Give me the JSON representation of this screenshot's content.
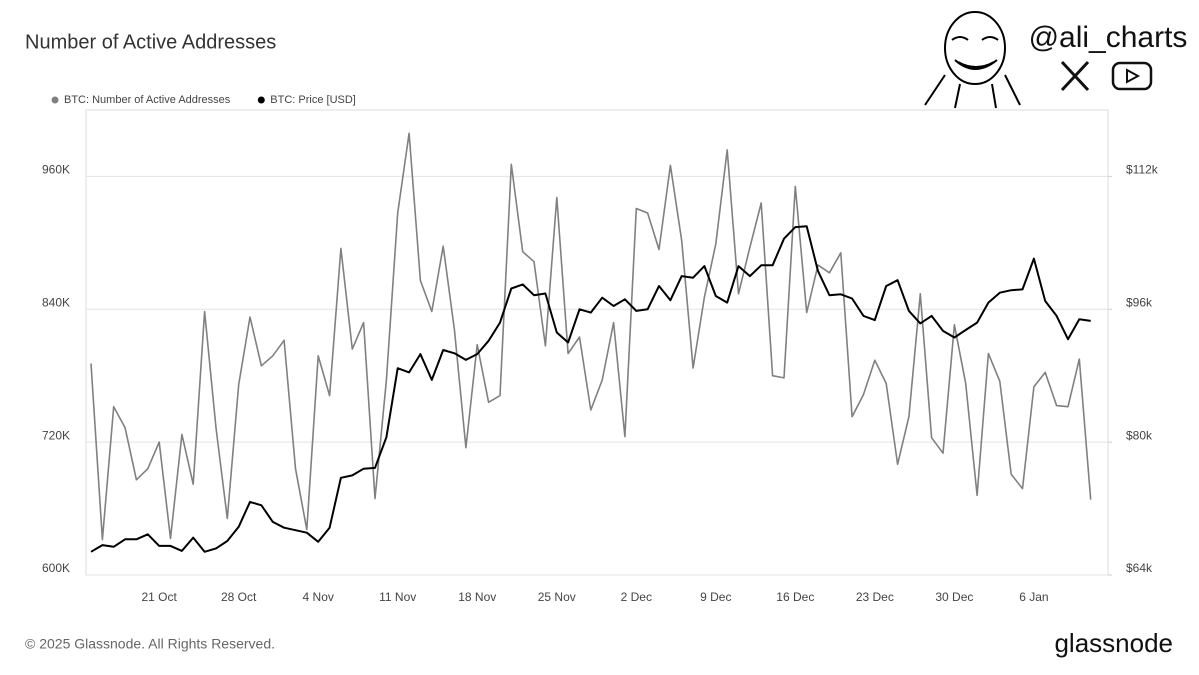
{
  "chart_data": {
    "type": "line",
    "title": "Number of Active Addresses",
    "categories": [
      null,
      null,
      null,
      null,
      null,
      null,
      "21 Oct",
      null,
      null,
      null,
      null,
      null,
      null,
      "28 Oct",
      null,
      null,
      null,
      null,
      null,
      null,
      "4 Nov",
      null,
      null,
      null,
      null,
      null,
      null,
      "11 Nov",
      null,
      null,
      null,
      null,
      null,
      null,
      "18 Nov",
      null,
      null,
      null,
      null,
      null,
      null,
      "25 Nov",
      null,
      null,
      null,
      null,
      null,
      null,
      "2 Dec",
      null,
      null,
      null,
      null,
      null,
      null,
      "9 Dec",
      null,
      null,
      null,
      null,
      null,
      null,
      "16 Dec",
      null,
      null,
      null,
      null,
      null,
      null,
      "23 Dec",
      null,
      null,
      null,
      null,
      null,
      null,
      "30 Dec",
      null,
      null,
      null,
      null,
      null,
      null,
      "6 Jan",
      null,
      null,
      null,
      null,
      null
    ],
    "series": [
      {
        "name": "BTC: Number of Active Addresses",
        "color": "#808080",
        "values": [
          791000,
          632000,
          752000,
          733000,
          686000,
          696000,
          720000,
          633000,
          727000,
          682000,
          838000,
          733000,
          651000,
          772000,
          833000,
          789000,
          798000,
          812000,
          696000,
          641000,
          798000,
          762000,
          895000,
          804000,
          828000,
          669000,
          776000,
          927000,
          999000,
          866000,
          838000,
          897000,
          821000,
          715000,
          808000,
          756000,
          762000,
          971000,
          892000,
          883000,
          807000,
          941000,
          800000,
          815000,
          749000,
          776000,
          828000,
          725000,
          931000,
          927000,
          894000,
          970000,
          902000,
          787000,
          851000,
          899000,
          984000,
          854000,
          896000,
          936000,
          780000,
          778000,
          951000,
          837000,
          880000,
          873000,
          891000,
          743000,
          763000,
          794000,
          773000,
          700000,
          743000,
          854000,
          724000,
          710000,
          826000,
          773000,
          672000,
          800000,
          775000,
          691000,
          678000,
          770000,
          783000,
          753000,
          752000,
          795000,
          668000
        ]
      },
      {
        "name": "BTC: Price [USD]",
        "color": "#000000",
        "axis": "y2",
        "values": [
          66800,
          67600,
          67400,
          68300,
          68300,
          68900,
          67500,
          67500,
          66900,
          68500,
          66800,
          67200,
          68100,
          69800,
          72800,
          72400,
          70400,
          69700,
          69400,
          69100,
          68000,
          69700,
          75700,
          76000,
          76800,
          76900,
          80600,
          88900,
          88400,
          90600,
          87500,
          91100,
          90700,
          89900,
          90600,
          92200,
          94400,
          98500,
          99000,
          97700,
          97900,
          93200,
          92000,
          96000,
          95600,
          97400,
          96400,
          97200,
          95800,
          96000,
          98800,
          97100,
          100000,
          99800,
          101200,
          97600,
          96800,
          101200,
          100000,
          101300,
          101300,
          104500,
          105900,
          106000,
          100600,
          97700,
          97800,
          97300,
          95200,
          94700,
          98800,
          99500,
          95800,
          94300,
          95200,
          93400,
          92600,
          93500,
          94400,
          96800,
          98000,
          98300,
          98400,
          102100,
          97000,
          95200,
          92400,
          94800,
          94600
        ]
      }
    ],
    "ylim": [
      600000,
      1020000
    ],
    "yticks": [
      {
        "value": 600000,
        "label": "600K"
      },
      {
        "value": 720000,
        "label": "720K"
      },
      {
        "value": 840000,
        "label": "840K"
      },
      {
        "value": 960000,
        "label": "960K"
      }
    ],
    "y2lim": [
      64000,
      120000
    ],
    "y2ticks": [
      {
        "value": 64000,
        "label": "$64k"
      },
      {
        "value": 80000,
        "label": "$80k"
      },
      {
        "value": 96000,
        "label": "$96k"
      },
      {
        "value": 112000,
        "label": "$112k"
      }
    ],
    "grid": true
  },
  "watermark": "@ali_charts",
  "copyright": "© 2025 Glassnode. All Rights Reserved.",
  "brand": "glassnode"
}
